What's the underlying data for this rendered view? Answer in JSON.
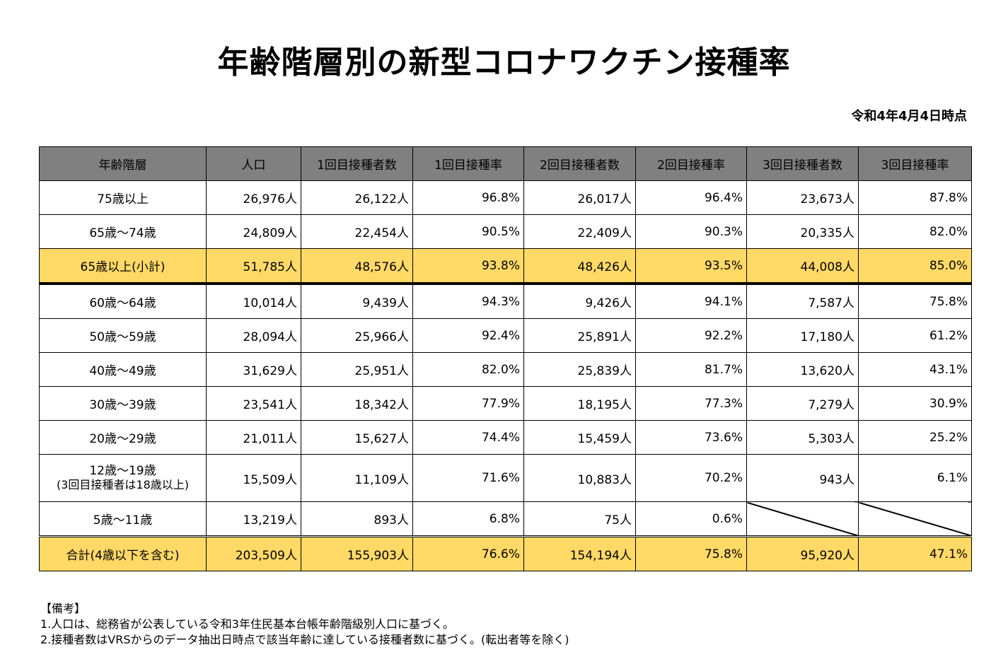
{
  "title": "年齢階層別の新型コロナワクチン接種率",
  "as_of": "令和4年4月4日時点",
  "table": {
    "headers": [
      "年齢階層",
      "人口",
      "1回目接種者数",
      "1回目接種率",
      "2回目接種者数",
      "2回目接種率",
      "3回目接種者数",
      "3回目接種率"
    ],
    "rows": [
      {
        "age": "75歳以上",
        "age2": "",
        "pop": "26,976人",
        "d1": "26,122人",
        "r1": "96.8%",
        "d2": "26,017人",
        "r2": "96.4%",
        "d3": "23,673人",
        "r3": "87.8%"
      },
      {
        "age": "65歳～74歳",
        "age2": "",
        "pop": "24,809人",
        "d1": "22,454人",
        "r1": "90.5%",
        "d2": "22,409人",
        "r2": "90.3%",
        "d3": "20,335人",
        "r3": "82.0%"
      },
      {
        "age": "65歳以上(小計)",
        "age2": "",
        "pop": "51,785人",
        "d1": "48,576人",
        "r1": "93.8%",
        "d2": "48,426人",
        "r2": "93.5%",
        "d3": "44,008人",
        "r3": "85.0%"
      },
      {
        "age": "60歳～64歳",
        "age2": "",
        "pop": "10,014人",
        "d1": "9,439人",
        "r1": "94.3%",
        "d2": "9,426人",
        "r2": "94.1%",
        "d3": "7,587人",
        "r3": "75.8%"
      },
      {
        "age": "50歳～59歳",
        "age2": "",
        "pop": "28,094人",
        "d1": "25,966人",
        "r1": "92.4%",
        "d2": "25,891人",
        "r2": "92.2%",
        "d3": "17,180人",
        "r3": "61.2%"
      },
      {
        "age": "40歳～49歳",
        "age2": "",
        "pop": "31,629人",
        "d1": "25,951人",
        "r1": "82.0%",
        "d2": "25,839人",
        "r2": "81.7%",
        "d3": "13,620人",
        "r3": "43.1%"
      },
      {
        "age": "30歳～39歳",
        "age2": "",
        "pop": "23,541人",
        "d1": "18,342人",
        "r1": "77.9%",
        "d2": "18,195人",
        "r2": "77.3%",
        "d3": "7,279人",
        "r3": "30.9%"
      },
      {
        "age": "20歳～29歳",
        "age2": "",
        "pop": "21,011人",
        "d1": "15,627人",
        "r1": "74.4%",
        "d2": "15,459人",
        "r2": "73.6%",
        "d3": "5,303人",
        "r3": "25.2%"
      },
      {
        "age": "12歳～19歳",
        "age2": "(3回目接種者は18歳以上)",
        "pop": "15,509人",
        "d1": "11,109人",
        "r1": "71.6%",
        "d2": "10,883人",
        "r2": "70.2%",
        "d3": "943人",
        "r3": "6.1%"
      },
      {
        "age": "5歳～11歳",
        "age2": "",
        "pop": "13,219人",
        "d1": "893人",
        "r1": "6.8%",
        "d2": "75人",
        "r2": "0.6%",
        "d3": "",
        "r3": ""
      },
      {
        "age": "合計(4歳以下を含む)",
        "age2": "",
        "pop": "203,509人",
        "d1": "155,903人",
        "r1": "76.6%",
        "d2": "154,194人",
        "r2": "75.8%",
        "d3": "95,920人",
        "r3": "47.1%"
      }
    ]
  },
  "notes": {
    "heading": "【備考】",
    "line1": "1.人口は、総務省が公表している令和3年住民基本台帳年齢階級別人口に基づく。",
    "line2": "2.接種者数はVRSからのデータ抽出日時点で該当年齢に達している接種者数に基づく。(転出者等を除く)"
  }
}
